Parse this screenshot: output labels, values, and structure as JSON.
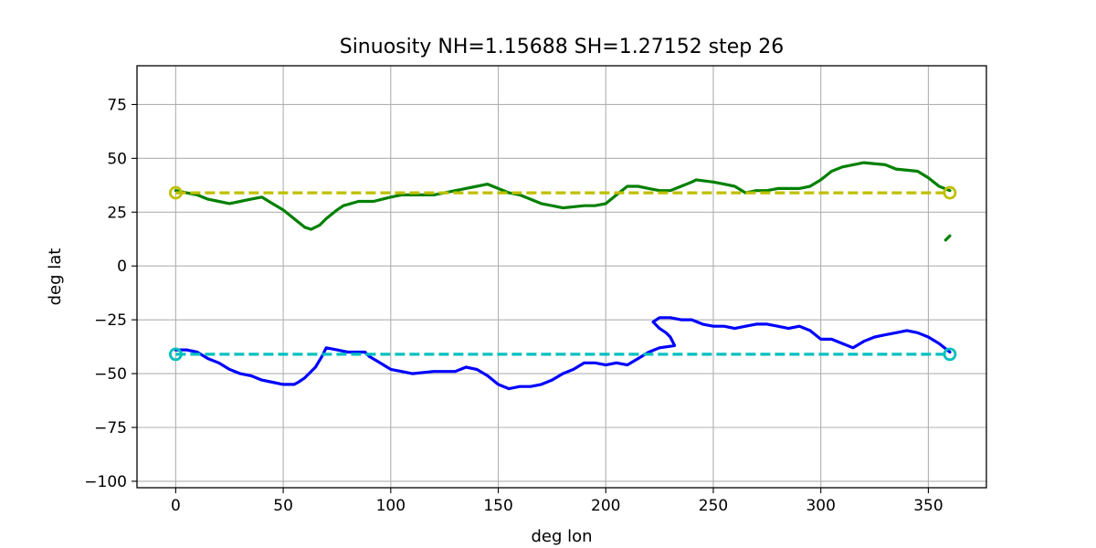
{
  "chart_data": {
    "type": "line",
    "title": "Sinuosity NH=1.15688 SH=1.27152 step 26",
    "xlabel": "deg lon",
    "ylabel": "deg lat",
    "xlim": [
      -18,
      377
    ],
    "ylim": [
      -103,
      93
    ],
    "xticks": [
      0,
      50,
      100,
      150,
      200,
      250,
      300,
      350
    ],
    "yticks": [
      -100,
      -75,
      -50,
      -25,
      0,
      25,
      50,
      75
    ],
    "grid": true,
    "colors": {
      "nh_line": "#008000",
      "sh_line": "#0000ff",
      "nh_ref": "#bfbf00",
      "sh_ref": "#00bfbf",
      "grid": "#b0b0b0"
    },
    "series": [
      {
        "key": "nh",
        "style": "solid",
        "points": [
          [
            0,
            35
          ],
          [
            10,
            33
          ],
          [
            15,
            31
          ],
          [
            20,
            30
          ],
          [
            25,
            29
          ],
          [
            30,
            30
          ],
          [
            35,
            31
          ],
          [
            40,
            32
          ],
          [
            45,
            29
          ],
          [
            50,
            26
          ],
          [
            55,
            22
          ],
          [
            60,
            18
          ],
          [
            63,
            17
          ],
          [
            67,
            19
          ],
          [
            70,
            22
          ],
          [
            75,
            26
          ],
          [
            78,
            28
          ],
          [
            85,
            30
          ],
          [
            92,
            30
          ],
          [
            100,
            32
          ],
          [
            105,
            33
          ],
          [
            115,
            33
          ],
          [
            120,
            33
          ],
          [
            130,
            35
          ],
          [
            140,
            37
          ],
          [
            145,
            38
          ],
          [
            150,
            36
          ],
          [
            155,
            34
          ],
          [
            160,
            33
          ],
          [
            165,
            31
          ],
          [
            170,
            29
          ],
          [
            175,
            28
          ],
          [
            180,
            27
          ],
          [
            190,
            28
          ],
          [
            195,
            28
          ],
          [
            200,
            29
          ],
          [
            205,
            33
          ],
          [
            210,
            37
          ],
          [
            215,
            37
          ],
          [
            220,
            36
          ],
          [
            225,
            35
          ],
          [
            230,
            35
          ],
          [
            235,
            37
          ],
          [
            240,
            39
          ],
          [
            242,
            40
          ],
          [
            250,
            39
          ],
          [
            255,
            38
          ],
          [
            260,
            37
          ],
          [
            265,
            34
          ],
          [
            270,
            35
          ],
          [
            275,
            35
          ],
          [
            280,
            36
          ],
          [
            285,
            36
          ],
          [
            290,
            36
          ],
          [
            295,
            37
          ],
          [
            300,
            40
          ],
          [
            305,
            44
          ],
          [
            310,
            46
          ],
          [
            315,
            47
          ],
          [
            320,
            48
          ],
          [
            330,
            47
          ],
          [
            335,
            45
          ],
          [
            345,
            44
          ],
          [
            350,
            41
          ],
          [
            355,
            37
          ],
          [
            360,
            35
          ]
        ]
      },
      {
        "key": "nh-fragment",
        "style": "solid",
        "points": [
          [
            358,
            12
          ],
          [
            360,
            14
          ]
        ]
      },
      {
        "key": "sh",
        "style": "solid",
        "points": [
          [
            0,
            -39
          ],
          [
            5,
            -39
          ],
          [
            10,
            -40
          ],
          [
            15,
            -43
          ],
          [
            20,
            -45
          ],
          [
            25,
            -48
          ],
          [
            30,
            -50
          ],
          [
            35,
            -51
          ],
          [
            40,
            -53
          ],
          [
            45,
            -54
          ],
          [
            50,
            -55
          ],
          [
            55,
            -55
          ],
          [
            57,
            -54
          ],
          [
            60,
            -52
          ],
          [
            65,
            -47
          ],
          [
            68,
            -42
          ],
          [
            70,
            -38
          ],
          [
            75,
            -39
          ],
          [
            80,
            -40
          ],
          [
            85,
            -40
          ],
          [
            88,
            -40
          ],
          [
            90,
            -42
          ],
          [
            95,
            -45
          ],
          [
            100,
            -48
          ],
          [
            105,
            -49
          ],
          [
            110,
            -50
          ],
          [
            120,
            -49
          ],
          [
            130,
            -49
          ],
          [
            135,
            -47
          ],
          [
            140,
            -48
          ],
          [
            145,
            -51
          ],
          [
            150,
            -55
          ],
          [
            155,
            -57
          ],
          [
            160,
            -56
          ],
          [
            165,
            -56
          ],
          [
            170,
            -55
          ],
          [
            175,
            -53
          ],
          [
            180,
            -50
          ],
          [
            185,
            -48
          ],
          [
            190,
            -45
          ],
          [
            195,
            -45
          ],
          [
            200,
            -46
          ],
          [
            205,
            -45
          ],
          [
            210,
            -46
          ],
          [
            215,
            -43
          ],
          [
            220,
            -40
          ],
          [
            225,
            -38
          ],
          [
            232,
            -37
          ],
          [
            230,
            -33
          ],
          [
            228,
            -31
          ],
          [
            225,
            -29
          ],
          [
            222,
            -26
          ],
          [
            225,
            -24
          ],
          [
            230,
            -24
          ],
          [
            235,
            -25
          ],
          [
            240,
            -25
          ],
          [
            245,
            -27
          ],
          [
            250,
            -28
          ],
          [
            255,
            -28
          ],
          [
            260,
            -29
          ],
          [
            265,
            -28
          ],
          [
            270,
            -27
          ],
          [
            275,
            -27
          ],
          [
            280,
            -28
          ],
          [
            285,
            -29
          ],
          [
            290,
            -28
          ],
          [
            295,
            -30
          ],
          [
            300,
            -34
          ],
          [
            305,
            -34
          ],
          [
            310,
            -36
          ],
          [
            315,
            -38
          ],
          [
            320,
            -35
          ],
          [
            325,
            -33
          ],
          [
            330,
            -32
          ],
          [
            335,
            -31
          ],
          [
            340,
            -30
          ],
          [
            345,
            -31
          ],
          [
            350,
            -33
          ],
          [
            355,
            -36
          ],
          [
            360,
            -40
          ]
        ]
      },
      {
        "key": "nh-reference",
        "style": "dashed",
        "points": [
          [
            0,
            34
          ],
          [
            360,
            34
          ]
        ]
      },
      {
        "key": "sh-reference",
        "style": "dashed",
        "points": [
          [
            0,
            -41
          ],
          [
            360,
            -41
          ]
        ]
      }
    ]
  }
}
